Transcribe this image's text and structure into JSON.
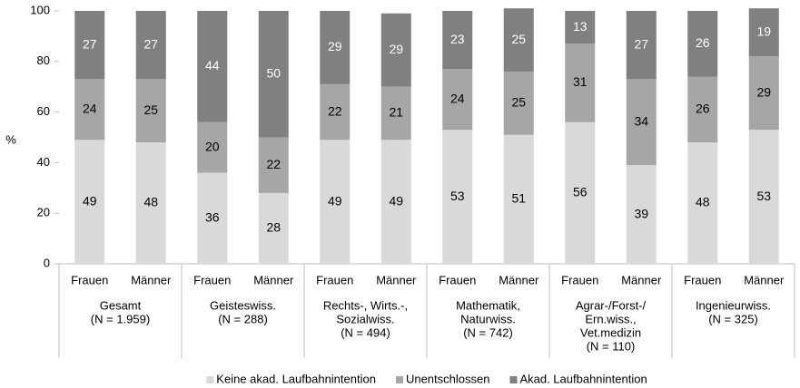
{
  "chart_data": {
    "type": "stacked_bar",
    "y_label": "%",
    "ylim": [
      0,
      100
    ],
    "yticks": [
      0,
      20,
      40,
      60,
      80,
      100
    ],
    "categories": [
      "Frauen",
      "Männer",
      "Frauen",
      "Männer",
      "Frauen",
      "Männer",
      "Frauen",
      "Männer",
      "Frauen",
      "Männer",
      "Frauen",
      "Männer"
    ],
    "groups": [
      [
        "Gesamt",
        "(N = 1.959)"
      ],
      [
        "Geisteswiss.",
        "(N = 288)"
      ],
      [
        "Rechts-, Wirts.-,",
        "Sozialwiss.",
        "(N = 494)"
      ],
      [
        "Mathematik,",
        "Naturwiss.",
        "(N = 742)"
      ],
      [
        "Agrar-/Forst-/",
        "Ern.wiss.,",
        "Vet.medizin",
        "(N = 110)"
      ],
      [
        "Ingenieurwiss.",
        "(N = 325)"
      ]
    ],
    "series": [
      {
        "name": "Keine akad. Laufbahnintention",
        "color": "#d9d9d9",
        "label_color": "#000000",
        "values": [
          49,
          48,
          36,
          28,
          49,
          49,
          53,
          51,
          56,
          39,
          48,
          53
        ]
      },
      {
        "name": "Unentschlossen",
        "color": "#a6a6a6",
        "label_color": "#000000",
        "values": [
          24,
          25,
          20,
          22,
          22,
          21,
          24,
          25,
          31,
          34,
          26,
          29
        ]
      },
      {
        "name": "Akad. Laufbahnintention",
        "color": "#808080",
        "label_color": "#ffffff",
        "values": [
          27,
          27,
          44,
          50,
          29,
          29,
          23,
          25,
          13,
          27,
          26,
          19
        ]
      }
    ]
  }
}
